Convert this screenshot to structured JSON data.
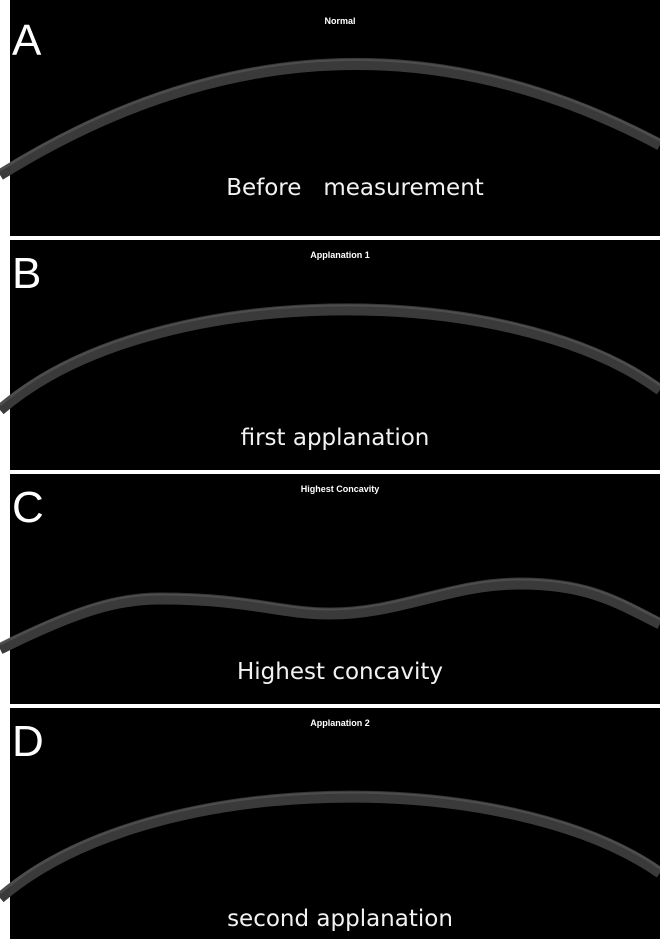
{
  "panels": [
    {
      "letter": "A",
      "header": "Normal",
      "caption": "Before   measurement"
    },
    {
      "letter": "B",
      "header": "Applanation 1",
      "caption": "first applanation"
    },
    {
      "letter": "C",
      "header": "Highest Concavity",
      "caption": "Highest concavity"
    },
    {
      "letter": "D",
      "header": "Applanation 2",
      "caption": "second applanation"
    }
  ]
}
